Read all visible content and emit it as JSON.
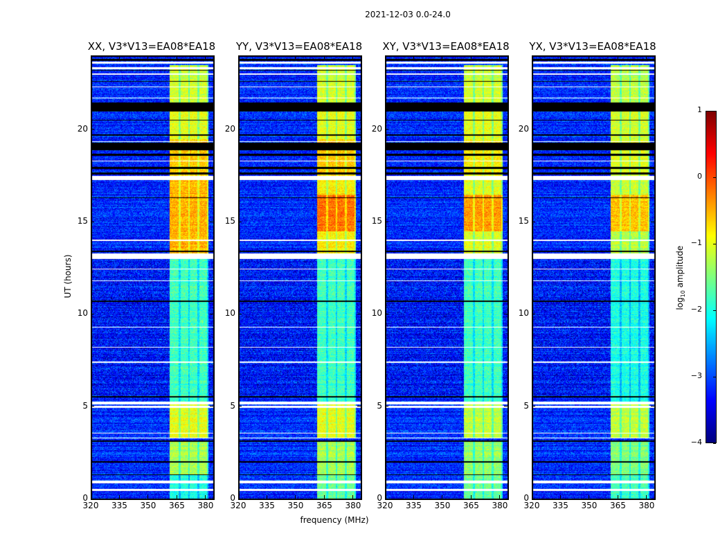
{
  "chart_data": {
    "type": "heatmap",
    "title": "2021-12-03 0.0-24.0",
    "xlabel": "frequency (MHz)",
    "ylabel": "UT (hours)",
    "xlim": [
      320,
      384
    ],
    "ylim": [
      0,
      24
    ],
    "xticks": [
      "320",
      "335",
      "350",
      "365",
      "380"
    ],
    "xtick_values": [
      320,
      335,
      350,
      365,
      380
    ],
    "yticks": [
      "0",
      "5",
      "10",
      "15",
      "20"
    ],
    "ytick_values": [
      0,
      5,
      10,
      15,
      20
    ],
    "colorbar": {
      "label": "log10 amplitude",
      "label_main": "log",
      "label_sub": "10",
      "label_rest": " amplitude",
      "range": [
        -4,
        1
      ],
      "ticks": [
        "1",
        "0",
        "−1",
        "−2",
        "−3",
        "−4"
      ],
      "tick_values": [
        1,
        0,
        -1,
        -2,
        -3,
        -4
      ],
      "colormap": "jet"
    },
    "background_level": -3.2,
    "band_strips_mhz": [
      [
        361,
        365.5
      ],
      [
        366.5,
        370.5
      ],
      [
        371.5,
        375.5
      ],
      [
        376.5,
        380.5
      ]
    ],
    "white_flag_ut": [
      [
        0.45,
        0.55
      ],
      [
        0.85,
        1.0
      ],
      [
        3.3,
        3.35
      ],
      [
        3.55,
        3.6
      ],
      [
        4.95,
        5.05
      ],
      [
        5.15,
        5.3
      ],
      [
        7.4,
        7.45
      ],
      [
        8.2,
        8.25
      ],
      [
        9.3,
        9.35
      ],
      [
        11.8,
        11.85
      ],
      [
        12.45,
        12.5
      ],
      [
        13.0,
        13.3
      ],
      [
        14.0,
        14.05
      ],
      [
        17.3,
        17.5
      ],
      [
        18.3,
        18.35
      ],
      [
        19.35,
        19.4
      ],
      [
        21.7,
        21.75
      ],
      [
        22.3,
        22.35
      ],
      [
        23.0,
        23.05
      ],
      [
        23.3,
        23.4
      ],
      [
        23.6,
        23.7
      ]
    ],
    "black_flag_ut": [
      [
        1.3,
        1.35
      ],
      [
        2.0,
        2.05
      ],
      [
        3.1,
        3.2
      ],
      [
        5.5,
        5.6
      ],
      [
        10.7,
        10.75
      ],
      [
        13.4,
        13.45
      ],
      [
        16.3,
        16.35
      ],
      [
        17.6,
        17.7
      ],
      [
        17.9,
        18.0
      ],
      [
        18.6,
        18.7
      ],
      [
        18.9,
        19.3
      ],
      [
        19.7,
        19.75
      ],
      [
        20.5,
        20.55
      ],
      [
        21.0,
        21.5
      ],
      [
        22.6,
        22.65
      ],
      [
        23.2,
        23.25
      ],
      [
        23.75,
        23.85
      ]
    ],
    "panels": [
      {
        "title": "XX, V3*V13=EA08*EA18",
        "band_segments": [
          {
            "ut": [
              0,
              1.3
            ],
            "level": -2.0
          },
          {
            "ut": [
              1.3,
              3.2
            ],
            "level": -1.3
          },
          {
            "ut": [
              3.3,
              5.3
            ],
            "level": -1.0
          },
          {
            "ut": [
              5.3,
              13.0
            ],
            "level": -1.8
          },
          {
            "ut": [
              13.3,
              17.3
            ],
            "level": -0.5
          },
          {
            "ut": [
              17.5,
              19.5
            ],
            "level": -0.6
          },
          {
            "ut": [
              19.5,
              21.0
            ],
            "level": -1.0
          },
          {
            "ut": [
              21.5,
              23.5
            ],
            "level": -1.1
          }
        ]
      },
      {
        "title": "YY, V3*V13=EA08*EA18",
        "band_segments": [
          {
            "ut": [
              0,
              1.3
            ],
            "level": -1.6
          },
          {
            "ut": [
              1.3,
              3.2
            ],
            "level": -1.3
          },
          {
            "ut": [
              3.3,
              5.3
            ],
            "level": -1.0
          },
          {
            "ut": [
              5.3,
              13.0
            ],
            "level": -1.8
          },
          {
            "ut": [
              13.3,
              14.5
            ],
            "level": -0.8
          },
          {
            "ut": [
              14.5,
              16.5
            ],
            "level": -0.2
          },
          {
            "ut": [
              16.5,
              17.3
            ],
            "level": -0.8
          },
          {
            "ut": [
              17.5,
              19.5
            ],
            "level": -0.6
          },
          {
            "ut": [
              19.5,
              21.0
            ],
            "level": -1.0
          },
          {
            "ut": [
              21.5,
              23.5
            ],
            "level": -1.1
          }
        ]
      },
      {
        "title": "XY, V3*V13=EA08*EA18",
        "band_segments": [
          {
            "ut": [
              0,
              1.3
            ],
            "level": -1.6
          },
          {
            "ut": [
              1.3,
              3.2
            ],
            "level": -1.4
          },
          {
            "ut": [
              3.3,
              5.3
            ],
            "level": -1.2
          },
          {
            "ut": [
              5.3,
              13.0
            ],
            "level": -1.8
          },
          {
            "ut": [
              13.3,
              14.5
            ],
            "level": -1.0
          },
          {
            "ut": [
              14.5,
              16.5
            ],
            "level": -0.4
          },
          {
            "ut": [
              16.5,
              17.3
            ],
            "level": -1.0
          },
          {
            "ut": [
              17.5,
              19.5
            ],
            "level": -0.8
          },
          {
            "ut": [
              19.5,
              21.0
            ],
            "level": -1.0
          },
          {
            "ut": [
              21.5,
              23.5
            ],
            "level": -1.1
          }
        ]
      },
      {
        "title": "YX, V3*V13=EA08*EA18",
        "band_segments": [
          {
            "ut": [
              0,
              1.3
            ],
            "level": -1.8
          },
          {
            "ut": [
              1.3,
              3.2
            ],
            "level": -1.5
          },
          {
            "ut": [
              3.3,
              5.3
            ],
            "level": -1.2
          },
          {
            "ut": [
              5.3,
              13.0
            ],
            "level": -2.0
          },
          {
            "ut": [
              13.3,
              14.5
            ],
            "level": -1.2
          },
          {
            "ut": [
              14.5,
              16.5
            ],
            "level": -0.6
          },
          {
            "ut": [
              16.5,
              17.3
            ],
            "level": -1.1
          },
          {
            "ut": [
              17.5,
              19.5
            ],
            "level": -1.0
          },
          {
            "ut": [
              19.5,
              21.0
            ],
            "level": -1.1
          },
          {
            "ut": [
              21.5,
              23.5
            ],
            "level": -1.2
          }
        ]
      }
    ]
  }
}
